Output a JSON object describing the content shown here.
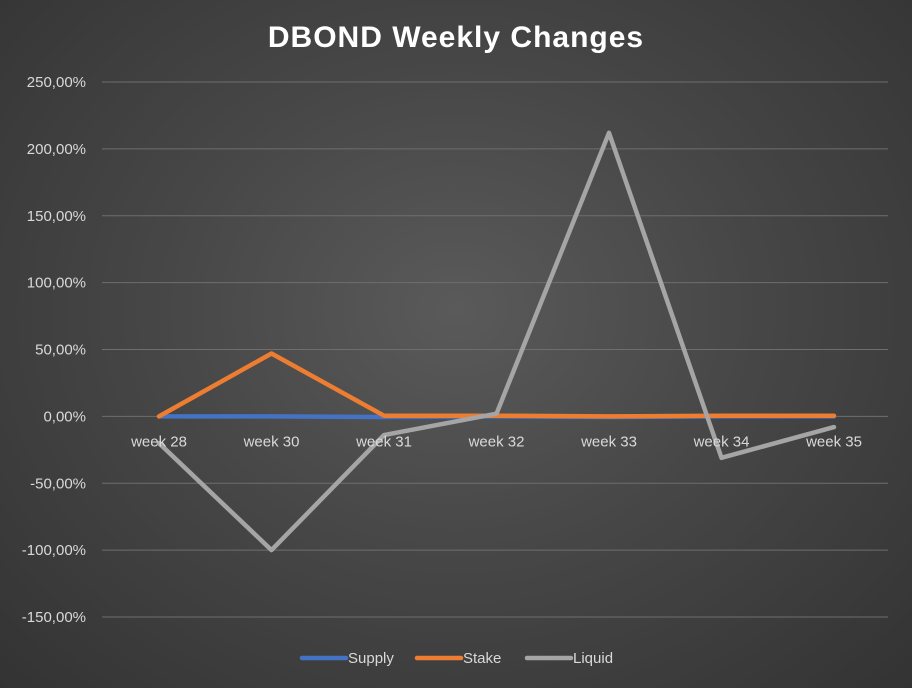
{
  "chart_data": {
    "type": "line",
    "title": "DBOND Weekly Changes",
    "xlabel": "",
    "ylabel": "",
    "categories": [
      "week 28",
      "week 30",
      "week 31",
      "week 32",
      "week 33",
      "week 34",
      "week 35"
    ],
    "yticks": [
      250,
      200,
      150,
      100,
      50,
      0,
      -50,
      -100,
      -150
    ],
    "ytick_labels": [
      "250,00%",
      "200,00%",
      "150,00%",
      "100,00%",
      "50,00%",
      "0,00%",
      "-50,00%",
      "-100,00%",
      "-150,00%"
    ],
    "ylim": [
      -150,
      250
    ],
    "grid": true,
    "legend_position": "bottom",
    "series": [
      {
        "name": "Supply",
        "color": "#4472c4",
        "values": [
          0,
          0,
          -0.5,
          0,
          -0.5,
          0,
          0
        ]
      },
      {
        "name": "Stake",
        "color": "#ed7d31",
        "values": [
          0,
          47,
          0.5,
          0.5,
          0,
          0.5,
          0.5
        ]
      },
      {
        "name": "Liquid",
        "color": "#a5a5a5",
        "values": [
          -20,
          -100,
          -14,
          2,
          212,
          -31,
          -8
        ]
      }
    ]
  }
}
